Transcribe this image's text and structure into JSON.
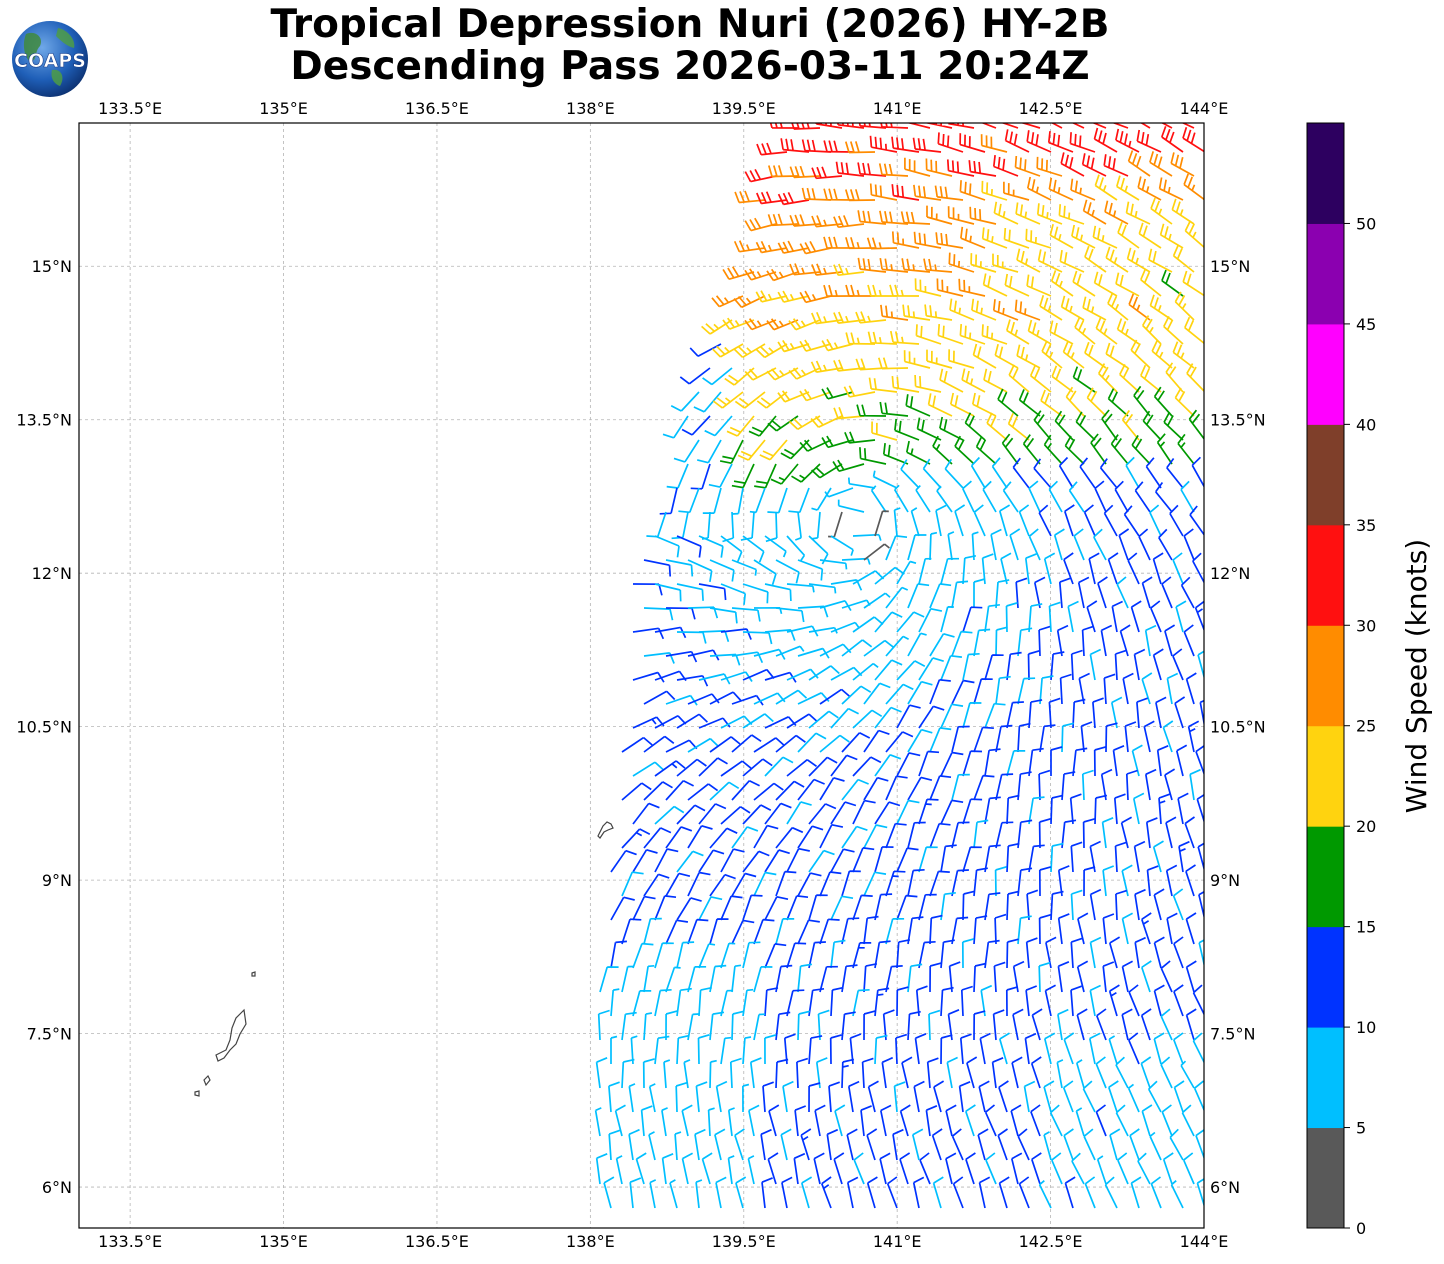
{
  "header": {
    "logo_text": "COAPS",
    "title_line1": "Tropical Depression Nuri (2026) HY-2B",
    "title_line2": "Descending Pass 2026-03-11 20:24Z"
  },
  "map": {
    "lon_range": [
      133,
      144
    ],
    "lat_range": [
      5.6,
      16.4
    ],
    "lon_ticks": [
      {
        "value": 133.5,
        "label": "133.5°E"
      },
      {
        "value": 135,
        "label": "135°E"
      },
      {
        "value": 136.5,
        "label": "136.5°E"
      },
      {
        "value": 138,
        "label": "138°E"
      },
      {
        "value": 139.5,
        "label": "139.5°E"
      },
      {
        "value": 141,
        "label": "141°E"
      },
      {
        "value": 142.5,
        "label": "142.5°E"
      },
      {
        "value": 144,
        "label": "144°E"
      }
    ],
    "lat_ticks": [
      {
        "value": 15,
        "label": "15°N"
      },
      {
        "value": 13.5,
        "label": "13.5°N"
      },
      {
        "value": 12,
        "label": "12°N"
      },
      {
        "value": 10.5,
        "label": "10.5°N"
      },
      {
        "value": 9,
        "label": "9°N"
      },
      {
        "value": 7.5,
        "label": "7.5°N"
      },
      {
        "value": 6,
        "label": "6°N"
      }
    ],
    "gridlines": true,
    "storm_center": {
      "lon": 140.6,
      "lat": 12.5
    },
    "islands": [
      {
        "name": "",
        "lon": 138.1,
        "lat": 9.5
      },
      {
        "name": "",
        "lon": 134.5,
        "lat": 7.4
      }
    ]
  },
  "colorbar": {
    "label": "Wind Speed (knots)",
    "ticks": [
      "0",
      "5",
      "10",
      "15",
      "20",
      "25",
      "30",
      "35",
      "40",
      "45",
      "50"
    ],
    "bins": [
      {
        "min": 0,
        "max": 5,
        "color": "#595959"
      },
      {
        "min": 5,
        "max": 10,
        "color": "#00bfff"
      },
      {
        "min": 10,
        "max": 15,
        "color": "#0033ff"
      },
      {
        "min": 15,
        "max": 20,
        "color": "#009900"
      },
      {
        "min": 20,
        "max": 25,
        "color": "#ffd30f"
      },
      {
        "min": 25,
        "max": 30,
        "color": "#ff8c00"
      },
      {
        "min": 30,
        "max": 35,
        "color": "#ff1010"
      },
      {
        "min": 35,
        "max": 40,
        "color": "#7f3f2a"
      },
      {
        "min": 40,
        "max": 45,
        "color": "#ff00ff"
      },
      {
        "min": 45,
        "max": 50,
        "color": "#8b00b0"
      },
      {
        "min": 50,
        "max": 55,
        "color": "#2d0060"
      }
    ]
  }
}
